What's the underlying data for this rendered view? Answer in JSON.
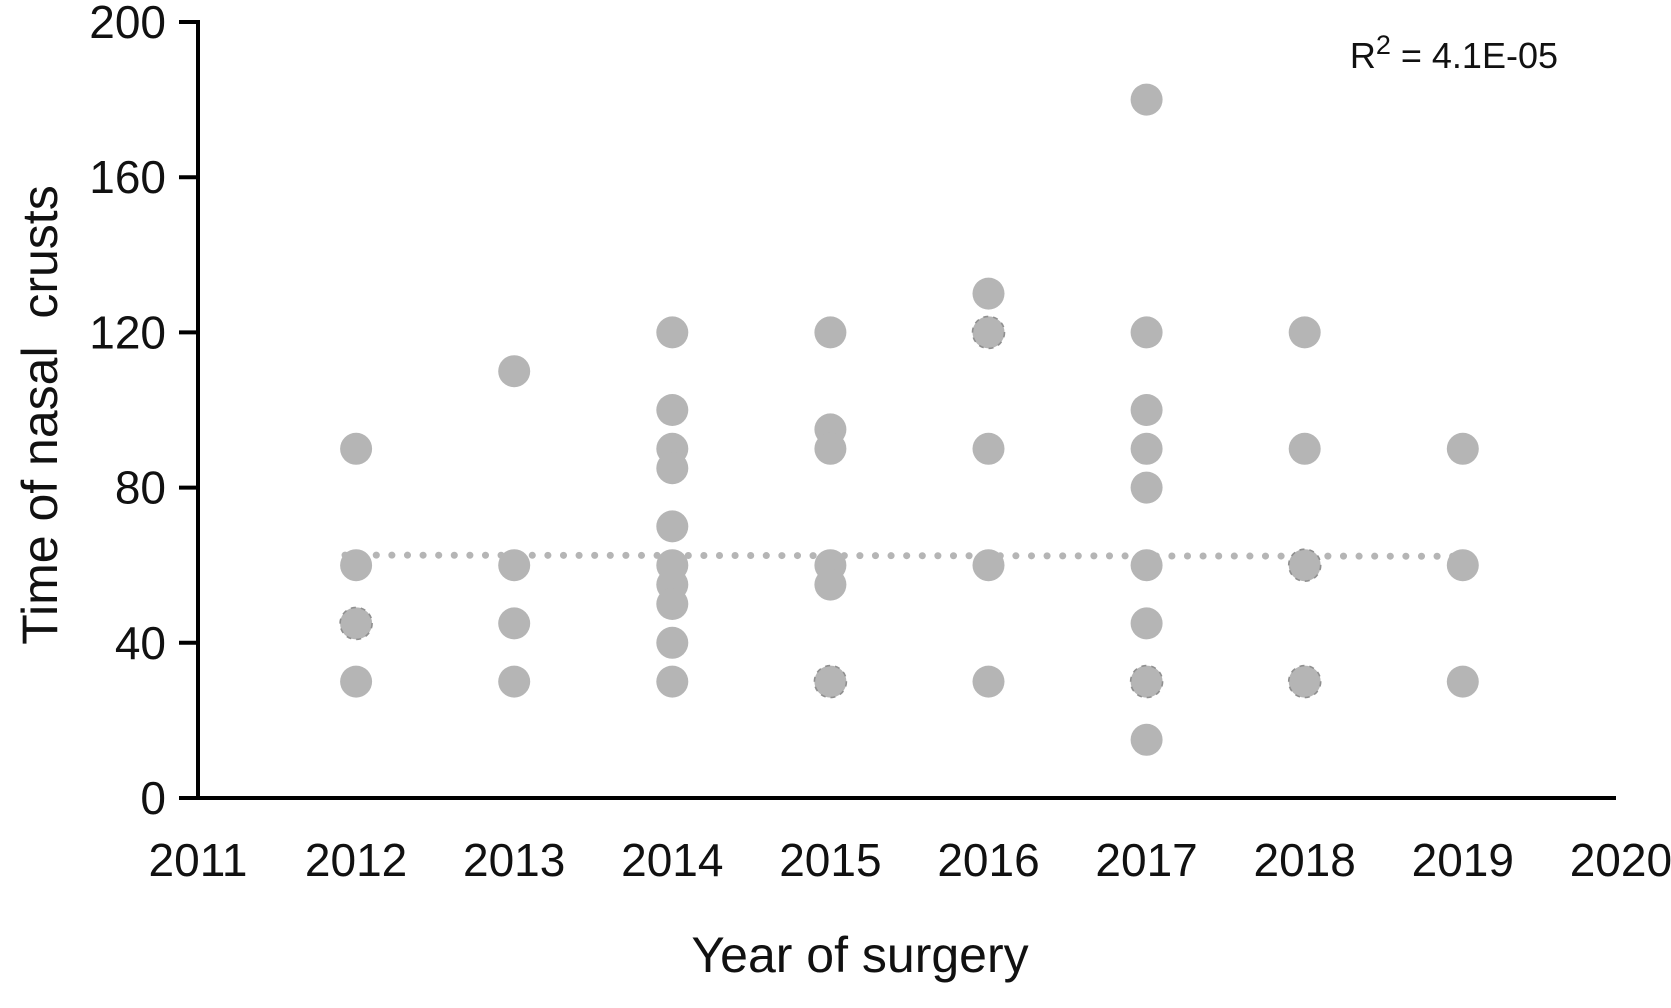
{
  "figure": {
    "background": "#ffffff",
    "text_color": "#111111"
  },
  "chart_data": {
    "type": "scatter",
    "title": "",
    "xlabel": "Year of surgery",
    "ylabel": "Time of nasal  crusts",
    "annotation": {
      "base": "R",
      "sup": "2",
      "rest": " = 4.1E-05"
    },
    "xlim": [
      2011,
      2020
    ],
    "ylim": [
      0,
      200
    ],
    "xticks": [
      2011,
      2012,
      2013,
      2014,
      2015,
      2016,
      2017,
      2018,
      2019,
      2020
    ],
    "yticks": [
      0,
      40,
      80,
      120,
      160,
      200
    ],
    "grid": false,
    "legend": "none",
    "marker_color": "#b5b5b5",
    "overlap_stroke_color": "#8f8f8f",
    "axis_color": "#000000",
    "trendline": {
      "style": "dotted",
      "color": "#b5b5b5",
      "x_start": 2011.93,
      "x_end": 2019.02,
      "y_start": 62.6,
      "y_end": 62.3
    },
    "series": [
      {
        "year": 2012,
        "values": [
          90,
          60,
          45,
          30
        ]
      },
      {
        "year": 2013,
        "values": [
          110,
          60,
          45,
          30
        ]
      },
      {
        "year": 2014,
        "values": [
          120,
          100,
          90,
          85,
          70,
          60,
          55,
          50,
          40,
          30
        ]
      },
      {
        "year": 2015,
        "values": [
          120,
          95,
          90,
          60,
          55,
          30
        ]
      },
      {
        "year": 2016,
        "values": [
          130,
          120,
          90,
          60,
          30
        ]
      },
      {
        "year": 2017,
        "values": [
          180,
          120,
          100,
          90,
          80,
          60,
          45,
          30,
          15
        ]
      },
      {
        "year": 2018,
        "values": [
          120,
          90,
          60,
          30
        ]
      },
      {
        "year": 2019,
        "values": [
          90,
          60,
          30
        ]
      }
    ],
    "overlapped_points": [
      [
        2012,
        45
      ],
      [
        2015,
        30
      ],
      [
        2016,
        120
      ],
      [
        2017,
        30
      ],
      [
        2018,
        60
      ],
      [
        2018,
        30
      ]
    ]
  }
}
